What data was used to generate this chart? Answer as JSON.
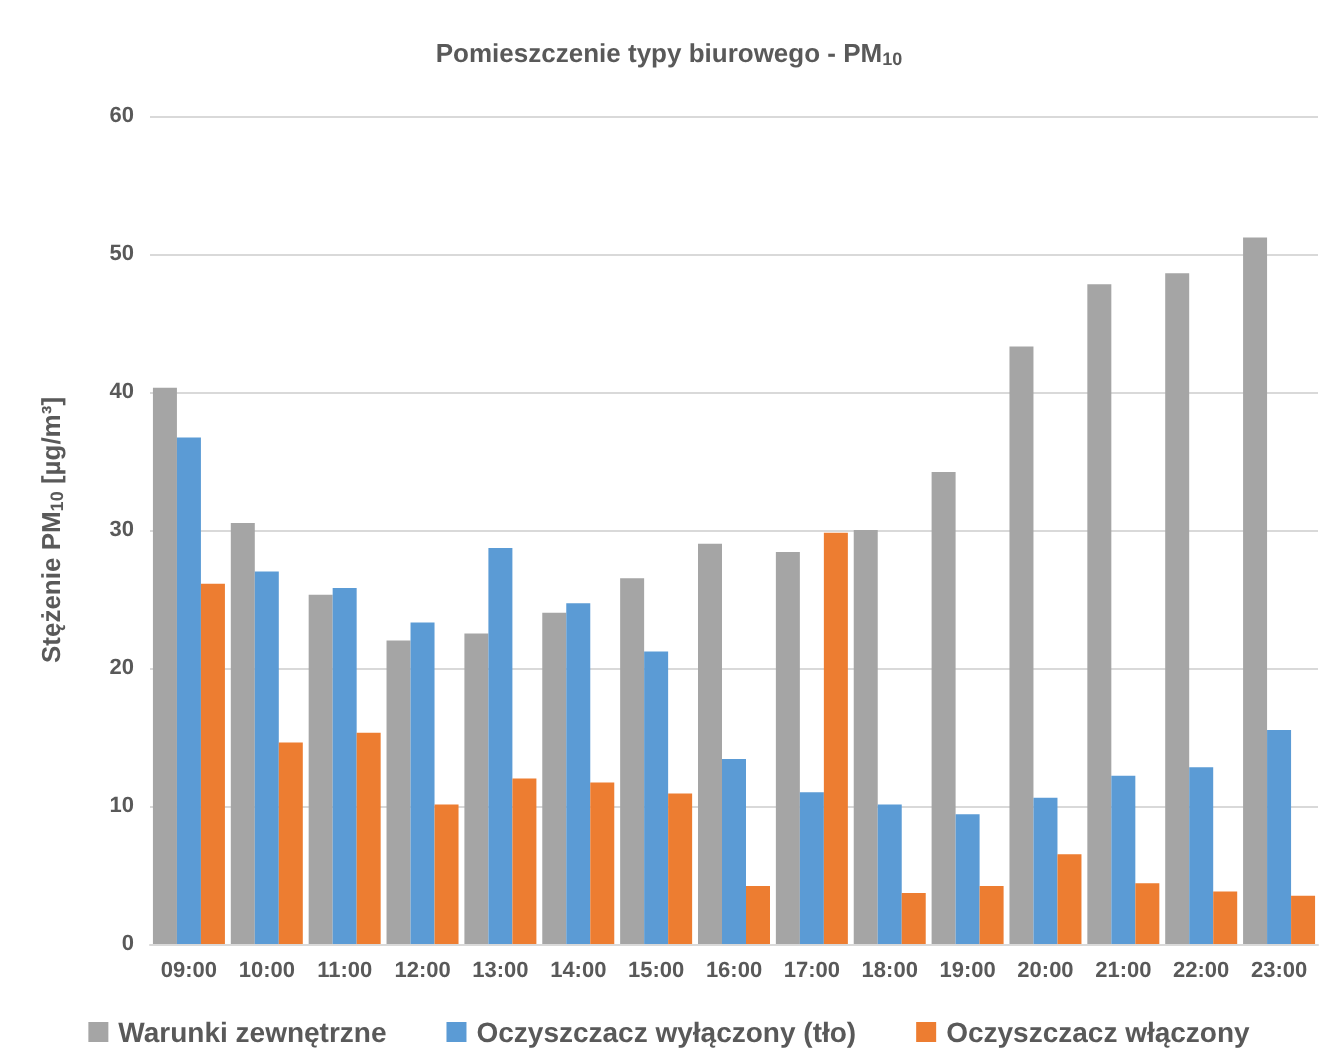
{
  "chart_data": {
    "type": "bar",
    "title": "Pomieszczenie typy biurowego - PM$_{10}$",
    "ylabel": "Stężenie PM$_{10}$ [µg/m³]",
    "categories": [
      "09:00",
      "10:00",
      "11:00",
      "12:00",
      "13:00",
      "14:00",
      "15:00",
      "16:00",
      "17:00",
      "18:00",
      "19:00",
      "20:00",
      "21:00",
      "22:00",
      "23:00"
    ],
    "series": [
      {
        "name": "Warunki zewnętrzne",
        "color": "#a5a5a5",
        "values": [
          40.3,
          30.5,
          25.3,
          22,
          22.5,
          24,
          26.5,
          29,
          28.4,
          30,
          34.2,
          43.3,
          47.8,
          48.6,
          51.2
        ]
      },
      {
        "name": "Oczyszczacz wyłączony (tło)",
        "color": "#5b9bd5",
        "values": [
          36.7,
          27,
          25.8,
          23.3,
          28.7,
          24.7,
          21.2,
          13.4,
          11,
          10.1,
          9.4,
          10.6,
          12.2,
          12.8,
          15.5
        ]
      },
      {
        "name": "Oczyszczacz włączony",
        "color": "#ed7d31",
        "values": [
          26.1,
          14.6,
          15.3,
          10.1,
          12,
          11.7,
          10.9,
          4.2,
          29.8,
          3.7,
          4.2,
          6.5,
          4.4,
          3.8,
          3.5
        ]
      }
    ],
    "ylim": [
      0,
      60
    ],
    "yticks": [
      0,
      10,
      20,
      30,
      40,
      50,
      60
    ],
    "grid": "y",
    "legend": "bottom"
  }
}
